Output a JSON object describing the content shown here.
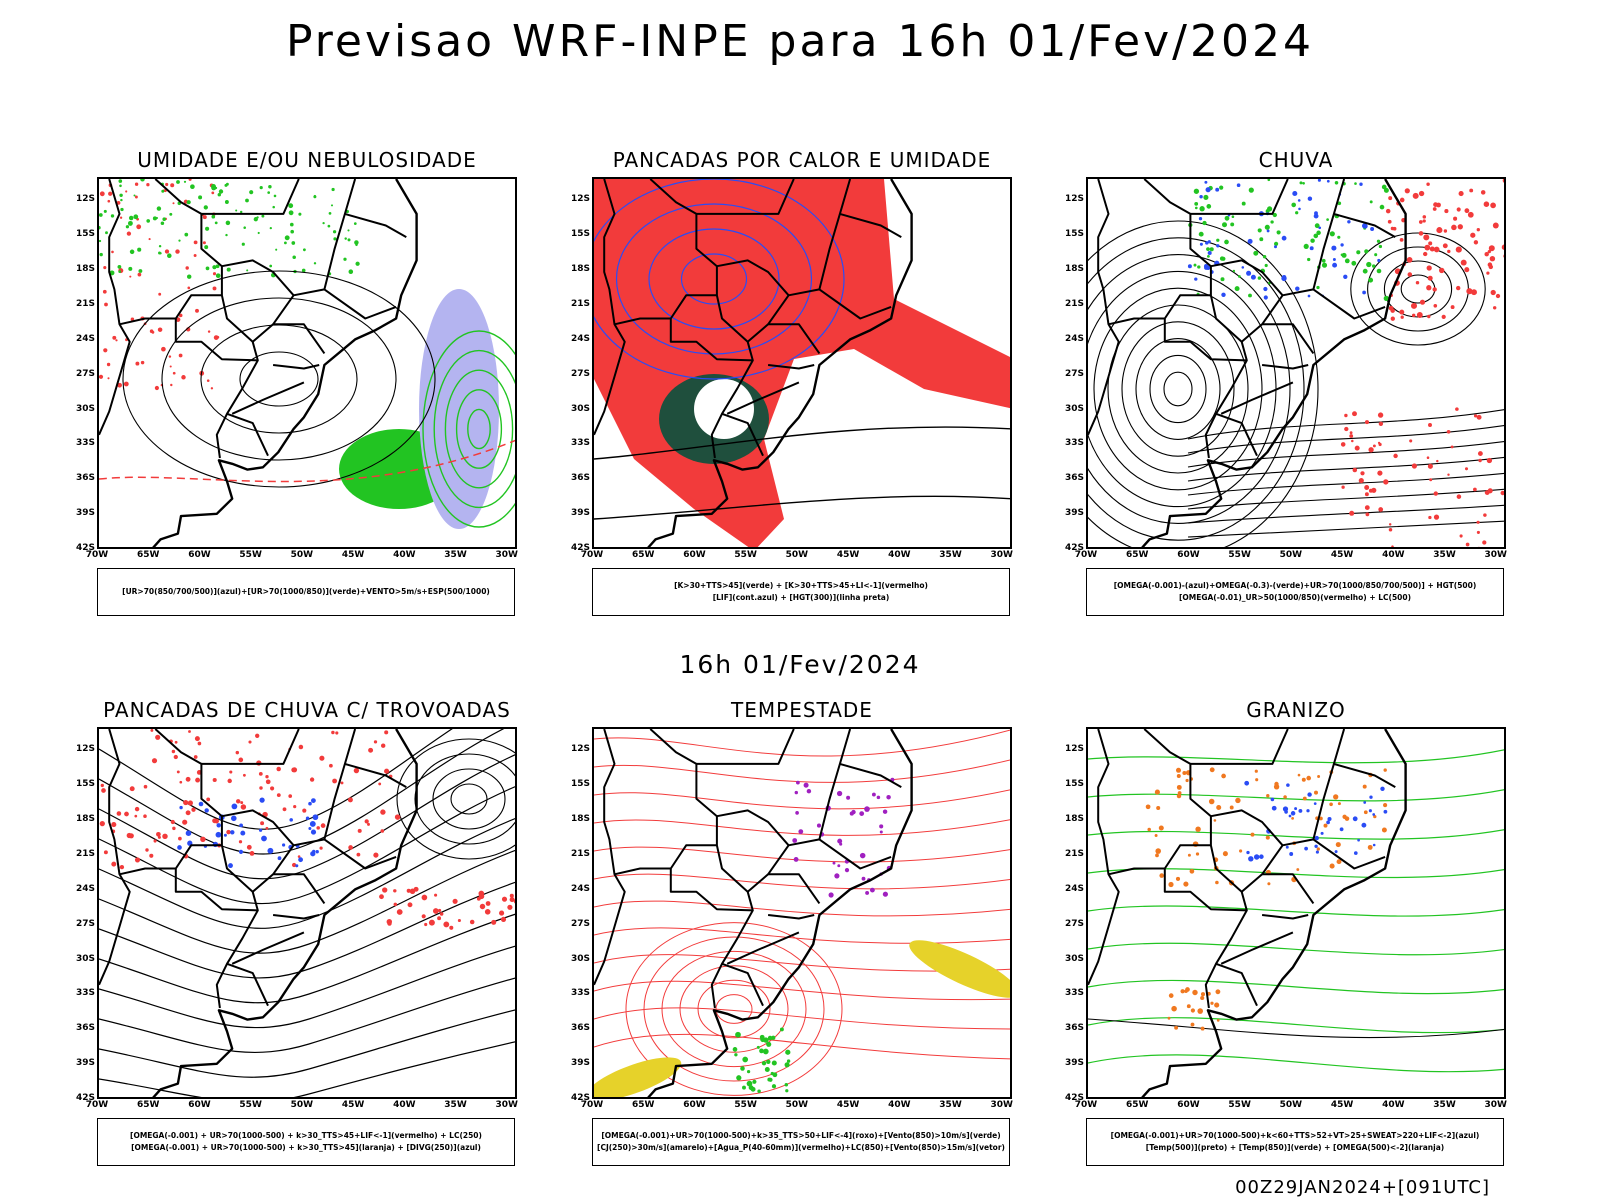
{
  "main_title": "Previsao WRF-INPE  para 16h 01/Fev/2024",
  "mid_date": "16h 01/Fev/2024",
  "footer": "00Z29JAN2024+[091UTC]",
  "axes": {
    "lat_labels": [
      "12S",
      "15S",
      "18S",
      "21S",
      "24S",
      "27S",
      "30S",
      "33S",
      "36S",
      "39S",
      "42S"
    ],
    "lon_labels": [
      "70W",
      "65W",
      "60W",
      "55W",
      "50W",
      "45W",
      "40W",
      "35W",
      "30W"
    ]
  },
  "colors": {
    "red": "#f23b3b",
    "blue": "#2a4cf5",
    "green": "#22c422",
    "lavender": "#b4b4f0",
    "darkgreen": "#1f4f3d",
    "yellow": "#e6d22a",
    "orange": "#f07820",
    "purple": "#a020c0"
  },
  "panels": [
    {
      "title": "UMIDADE E/OU NEBULOSIDADE",
      "legend": [
        "[UR>70(850/700/500)](azul)+[UR>70(1000/850)](verde)+VENTO>5m/s+ESP(500/1000)"
      ]
    },
    {
      "title": "PANCADAS POR CALOR E UMIDADE",
      "legend": [
        "[K>30+TTS>45](verde) + [K>30+TTS>45+LI<-1](vermelho)",
        "[LIF](cont.azul) + [HGT(300)](linha preta)"
      ]
    },
    {
      "title": "CHUVA",
      "legend": [
        "[OMEGA(-0.001)-(azul)+OMEGA(-0.3)-(verde)+UR>70(1000/850/700/500)] + HGT(500)",
        "[OMEGA(-0.01)_UR>50(1000/850)(vermelho) + LC(500)"
      ]
    },
    {
      "title": "PANCADAS DE CHUVA C/ TROVOADAS",
      "legend": [
        "[OMEGA(-0.001) + UR>70(1000-500) + k>30_TTS>45+LIF<-1](vermelho) + LC(250)",
        "[OMEGA(-0.001) + UR>70(1000-500) + k>30_TTS>45](laranja) + [DIVG(250)](azul)"
      ]
    },
    {
      "title": "TEMPESTADE",
      "legend": [
        "[OMEGA(-0.001)+UR>70(1000-500)+k>35_TTS>50+LIF<-4](roxo)+[Vento(850)>10m/s](verde)",
        "[CJ(250)>30m/s](amarelo)+[Agua_P(40-60mm)](vermelho)+LC(850)+[Vento(850)>15m/s](vetor)"
      ]
    },
    {
      "title": "GRANIZO",
      "legend": [
        "[OMEGA(-0.001)+UR>70(1000-500)+k<60+TTS>52+VT>25+SWEAT>220+LIF<-2](azul)",
        "[Temp(500)](preto) + [Temp(850)](verde) + [OMEGA(500)<-2](laranja)"
      ]
    }
  ]
}
